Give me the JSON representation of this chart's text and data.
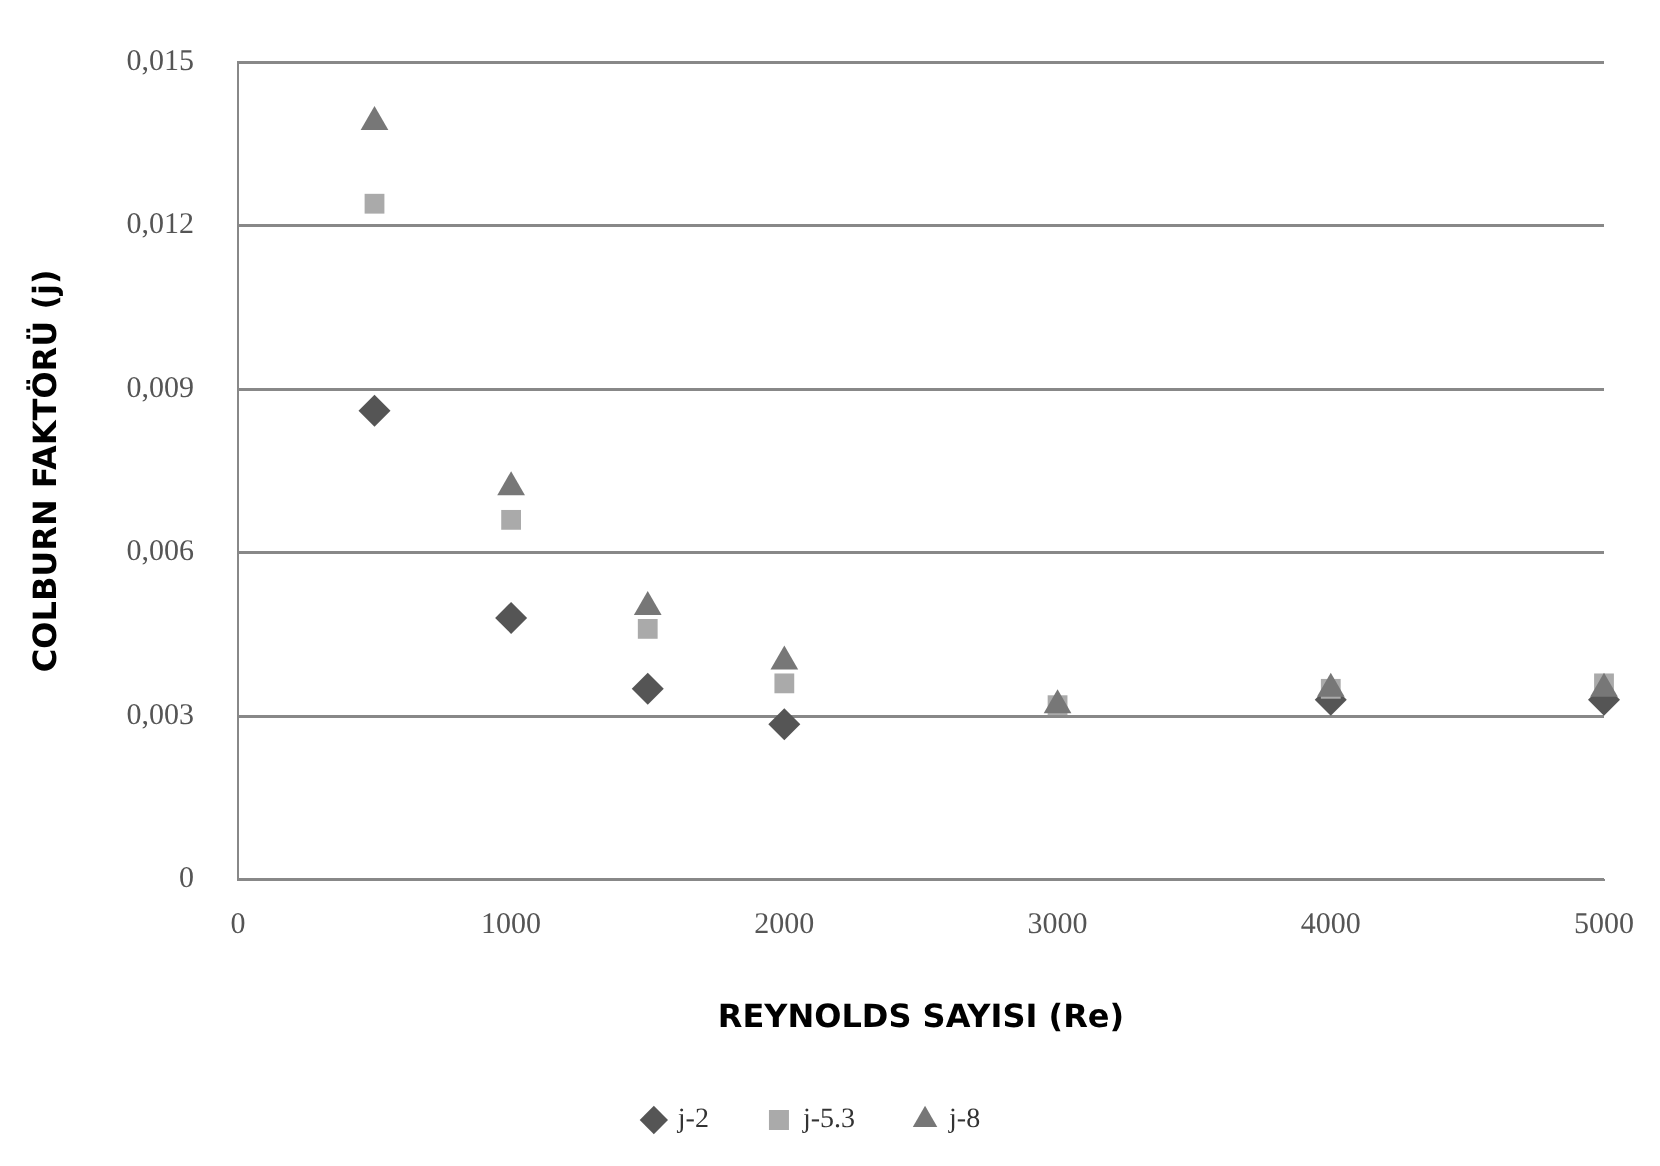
{
  "chart_data": {
    "type": "scatter",
    "xlabel": "REYNOLDS SAYISI (Re)",
    "ylabel": "COLBURN FAKTÖRÜ (j)",
    "x": [
      500,
      1000,
      1500,
      2000,
      3000,
      4000,
      5000
    ],
    "series": [
      {
        "name": "j-2",
        "color": "#555555",
        "marker": "diamond",
        "values": [
          0.0086,
          0.0048,
          0.0035,
          0.00285,
          null,
          0.0033,
          0.0033
        ]
      },
      {
        "name": "j-5.3",
        "color": "#aaaaaa",
        "marker": "square",
        "values": [
          0.0124,
          0.0066,
          0.0046,
          0.0036,
          0.0032,
          0.0035,
          0.0036
        ]
      },
      {
        "name": "j-8",
        "color": "#777777",
        "marker": "triangle",
        "values": [
          0.0139,
          0.0072,
          0.005,
          0.004,
          0.0032,
          0.0035,
          0.0035
        ]
      }
    ],
    "xlim": [
      0,
      5000
    ],
    "xticks": [
      0,
      1000,
      2000,
      3000,
      4000,
      5000
    ],
    "ylim": [
      0,
      0.015
    ],
    "yticks": [
      0,
      {
        "value": 0.003,
        "label": "0,003"
      },
      {
        "value": 0.006,
        "label": "0,006"
      },
      {
        "value": 0.009,
        "label": "0,009"
      },
      {
        "value": 0.012,
        "label": "0,012"
      },
      {
        "value": 0.015,
        "label": "0,015"
      }
    ],
    "grid": "y",
    "legend": "bottom"
  }
}
